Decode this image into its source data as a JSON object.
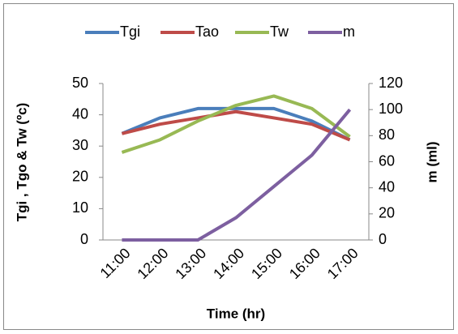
{
  "chart_data": {
    "type": "line",
    "x_label": "Time (hr)",
    "y_label": "Tgi , Tgo & Tw  (ºc)",
    "y2_label": "m (ml)",
    "categories": [
      "11:00",
      "12:00",
      "13:00",
      "14:00",
      "15:00",
      "16:00",
      "17:00"
    ],
    "series": [
      {
        "name": "Tgi",
        "color": "#4a7ebb",
        "values": [
          34,
          39,
          42,
          42,
          42,
          38,
          32
        ]
      },
      {
        "name": "Tao",
        "color": "#be4b48",
        "values": [
          34,
          37,
          39,
          41,
          39,
          37,
          32
        ]
      },
      {
        "name": "Tw",
        "color": "#98b954",
        "values": [
          28,
          32,
          38,
          43,
          46,
          42,
          33
        ]
      },
      {
        "name": "m",
        "color": "#7d5fa0",
        "axis": "y2",
        "values": [
          0,
          0,
          0,
          17,
          41,
          65,
          100
        ]
      }
    ],
    "ylim": [
      0,
      50
    ],
    "yticks": [
      0,
      10,
      20,
      30,
      40,
      50
    ],
    "y2lim": [
      0,
      120
    ],
    "y2ticks": [
      0,
      20,
      40,
      60,
      80,
      100,
      120
    ],
    "legend": "top"
  }
}
